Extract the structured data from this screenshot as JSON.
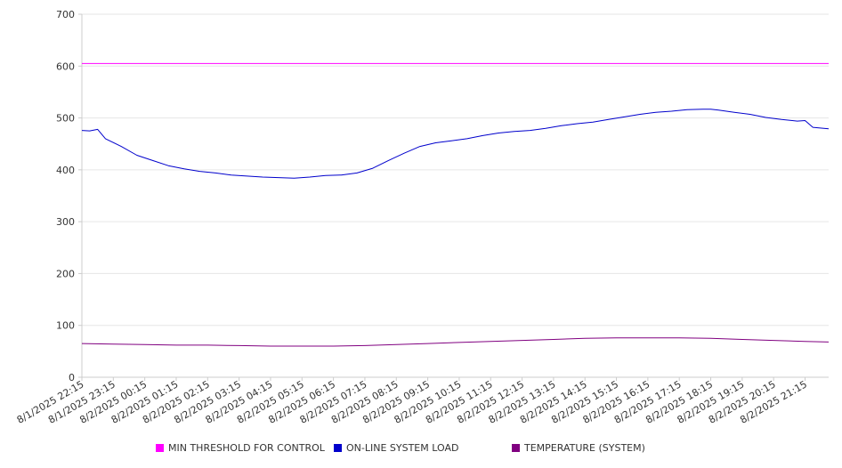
{
  "chart_data": {
    "type": "line",
    "title": "",
    "xlabel": "",
    "ylabel": "",
    "ylim": [
      0,
      700
    ],
    "yticks": [
      0,
      100,
      200,
      300,
      400,
      500,
      600,
      700
    ],
    "x_tick_labels": [
      "8/1/2025 22:15",
      "8/1/2025 23:15",
      "8/2/2025 00:15",
      "8/2/2025 01:15",
      "8/2/2025 02:15",
      "8/2/2025 03:15",
      "8/2/2025 04:15",
      "8/2/2025 05:15",
      "8/2/2025 06:15",
      "8/2/2025 07:15",
      "8/2/2025 08:15",
      "8/2/2025 09:15",
      "8/2/2025 10:15",
      "8/2/2025 11:15",
      "8/2/2025 12:15",
      "8/2/2025 13:15",
      "8/2/2025 14:15",
      "8/2/2025 15:15",
      "8/2/2025 16:15",
      "8/2/2025 17:15",
      "8/2/2025 18:15",
      "8/2/2025 19:15",
      "8/2/2025 20:15",
      "8/2/2025 21:15"
    ],
    "x_range": [
      "8/1/2025 22:15",
      "8/2/2025 22:00"
    ],
    "grid": true,
    "legend_position": "bottom",
    "series": [
      {
        "name": "MIN THRESHOLD FOR CONTROL",
        "color": "#ff00ff",
        "x": [
          "8/1/2025 22:15",
          "8/2/2025 22:00"
        ],
        "values": [
          605,
          605
        ]
      },
      {
        "name": "ON-LINE SYSTEM LOAD",
        "color": "#0000cc",
        "x": [
          "8/1/2025 22:15",
          "8/1/2025 22:30",
          "8/1/2025 22:45",
          "8/1/2025 23:00",
          "8/1/2025 23:30",
          "8/2/2025 00:00",
          "8/2/2025 00:30",
          "8/2/2025 01:00",
          "8/2/2025 01:30",
          "8/2/2025 02:00",
          "8/2/2025 02:30",
          "8/2/2025 03:00",
          "8/2/2025 03:30",
          "8/2/2025 04:00",
          "8/2/2025 04:30",
          "8/2/2025 05:00",
          "8/2/2025 05:30",
          "8/2/2025 06:00",
          "8/2/2025 06:30",
          "8/2/2025 07:00",
          "8/2/2025 07:30",
          "8/2/2025 08:00",
          "8/2/2025 08:30",
          "8/2/2025 09:00",
          "8/2/2025 09:30",
          "8/2/2025 10:00",
          "8/2/2025 10:30",
          "8/2/2025 11:00",
          "8/2/2025 11:30",
          "8/2/2025 12:00",
          "8/2/2025 12:30",
          "8/2/2025 13:00",
          "8/2/2025 13:30",
          "8/2/2025 14:00",
          "8/2/2025 14:30",
          "8/2/2025 15:00",
          "8/2/2025 15:30",
          "8/2/2025 16:00",
          "8/2/2025 16:30",
          "8/2/2025 17:00",
          "8/2/2025 17:30",
          "8/2/2025 18:00",
          "8/2/2025 18:15",
          "8/2/2025 18:30",
          "8/2/2025 19:00",
          "8/2/2025 19:30",
          "8/2/2025 20:00",
          "8/2/2025 20:30",
          "8/2/2025 21:00",
          "8/2/2025 21:15",
          "8/2/2025 21:30",
          "8/2/2025 22:00"
        ],
        "values": [
          476,
          475,
          478,
          460,
          445,
          428,
          418,
          408,
          402,
          397,
          394,
          390,
          388,
          386,
          385,
          384,
          386,
          389,
          390,
          394,
          403,
          418,
          432,
          445,
          452,
          456,
          460,
          466,
          471,
          474,
          476,
          480,
          485,
          489,
          492,
          497,
          502,
          507,
          511,
          513,
          516,
          517,
          517,
          515,
          511,
          507,
          501,
          497,
          494,
          495,
          482,
          479
        ]
      },
      {
        "name": "TEMPERATURE (SYSTEM)",
        "color": "#800080",
        "x": [
          "8/1/2025 22:15",
          "8/1/2025 23:15",
          "8/2/2025 00:15",
          "8/2/2025 01:15",
          "8/2/2025 02:15",
          "8/2/2025 03:15",
          "8/2/2025 04:15",
          "8/2/2025 05:15",
          "8/2/2025 06:15",
          "8/2/2025 07:15",
          "8/2/2025 08:15",
          "8/2/2025 09:15",
          "8/2/2025 10:15",
          "8/2/2025 11:15",
          "8/2/2025 12:15",
          "8/2/2025 13:15",
          "8/2/2025 14:15",
          "8/2/2025 15:15",
          "8/2/2025 16:15",
          "8/2/2025 17:15",
          "8/2/2025 18:15",
          "8/2/2025 19:15",
          "8/2/2025 20:15",
          "8/2/2025 21:15",
          "8/2/2025 22:00"
        ],
        "values": [
          65,
          64,
          63,
          62,
          62,
          61,
          60,
          60,
          60,
          61,
          63,
          65,
          67,
          69,
          71,
          73,
          75,
          76,
          76,
          76,
          75,
          73,
          71,
          69,
          68
        ]
      }
    ]
  }
}
